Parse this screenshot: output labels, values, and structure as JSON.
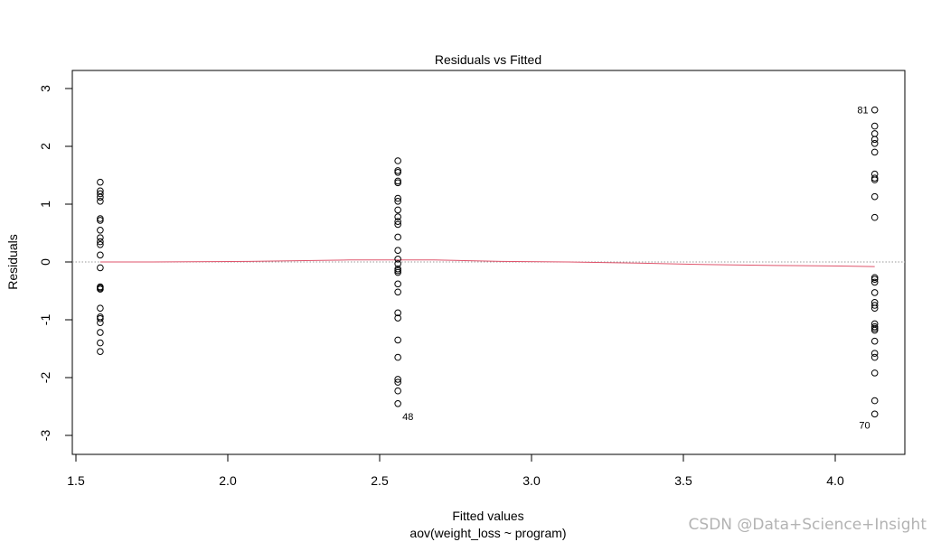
{
  "chart_data": {
    "type": "scatter",
    "title": "Residuals vs Fitted",
    "xlabel": "Fitted values",
    "xsublabel": "aov(weight_loss ~ program)",
    "ylabel": "Residuals",
    "xlim": [
      1.5,
      4.2
    ],
    "ylim": [
      -3.3,
      3.3
    ],
    "x_ticks": [
      1.5,
      2.0,
      2.5,
      3.0,
      3.5,
      4.0
    ],
    "x_tick_labels": [
      "1.5",
      "2.0",
      "2.5",
      "3.0",
      "3.5",
      "4.0"
    ],
    "y_ticks": [
      -3,
      -2,
      -1,
      0,
      1,
      2,
      3
    ],
    "y_tick_labels": [
      "-3",
      "-2",
      "-1",
      "0",
      "1",
      "2",
      "3"
    ],
    "grid": false,
    "reference_line": {
      "y": 0,
      "style": "dotted",
      "color": "#999999"
    },
    "groups": [
      {
        "x": 1.58,
        "residuals": [
          1.38,
          1.23,
          1.18,
          1.12,
          1.05,
          0.75,
          0.72,
          0.55,
          0.42,
          0.35,
          0.3,
          0.12,
          -0.1,
          -0.43,
          -0.45,
          -0.47,
          -0.8,
          -0.95,
          -0.98,
          -1.05,
          -1.22,
          -1.4,
          -1.55
        ]
      },
      {
        "x": 2.56,
        "residuals": [
          1.75,
          1.58,
          1.55,
          1.4,
          1.37,
          1.1,
          1.05,
          0.9,
          0.78,
          0.7,
          0.65,
          0.43,
          0.2,
          0.05,
          -0.03,
          -0.12,
          -0.15,
          -0.18,
          -0.38,
          -0.52,
          -0.88,
          -0.97,
          -1.35,
          -1.65,
          -2.03,
          -2.08,
          -2.23,
          -2.45
        ]
      },
      {
        "x": 4.13,
        "residuals": [
          2.63,
          2.35,
          2.22,
          2.12,
          2.05,
          1.9,
          1.52,
          1.45,
          1.42,
          1.13,
          0.77,
          -0.27,
          -0.3,
          -0.35,
          -0.53,
          -0.7,
          -0.75,
          -0.8,
          -1.07,
          -1.12,
          -1.15,
          -1.18,
          -1.37,
          -1.58,
          -1.65,
          -1.92,
          -2.4,
          -2.63
        ]
      }
    ],
    "smooth_line": {
      "color": "#df536b",
      "points": [
        [
          1.58,
          0.0
        ],
        [
          1.75,
          0.0
        ],
        [
          2.07,
          0.01
        ],
        [
          2.4,
          0.035
        ],
        [
          2.68,
          0.035
        ],
        [
          2.9,
          0.01
        ],
        [
          3.12,
          0.0
        ],
        [
          3.35,
          -0.02
        ],
        [
          3.58,
          -0.045
        ],
        [
          3.8,
          -0.06
        ],
        [
          4.02,
          -0.07
        ],
        [
          4.13,
          -0.08
        ]
      ]
    },
    "annotations": [
      {
        "text": "81",
        "x": 4.13,
        "y": 2.63,
        "side": "left"
      },
      {
        "text": "48",
        "x": 2.56,
        "y": -2.45,
        "side": "below-right"
      },
      {
        "text": "70",
        "x": 4.13,
        "y": -2.63,
        "side": "below-left"
      }
    ]
  },
  "watermark": "CSDN @Data+Science+Insight"
}
